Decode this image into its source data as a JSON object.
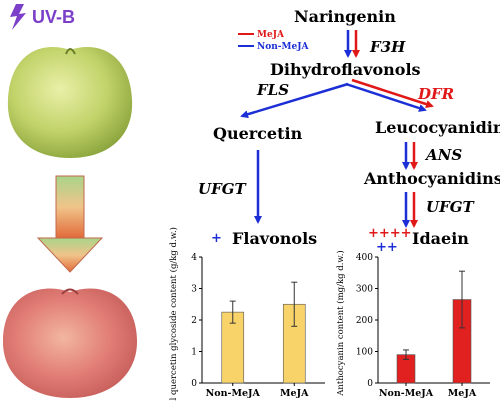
{
  "colors": {
    "uvb": "#7b3fc9",
    "mejja": "#e01818",
    "nonmejja": "#1c2fd6",
    "black": "#000000",
    "gold_bar": "#f7d36a",
    "red_bar": "#e12020"
  },
  "icons": {
    "uvb_symbol": "lightning-bolt-icon",
    "apple_top": "green-apple-image",
    "apple_bottom": "red-apple-image",
    "transition_arrow": "gradient-down-arrow-icon"
  },
  "labels": {
    "uvb": "UV-B",
    "legend_mejja": "MeJA",
    "legend_nonmejja": "Non-MeJA",
    "naringenin": "Naringenin",
    "f3h": "F3H",
    "dihydroflavonols": "Dihydroflavonols",
    "fls": "FLS",
    "dfr": "DFR",
    "quercetin": "Quercetin",
    "leucocyanidin": "Leucocyanidin",
    "ans": "ANS",
    "anthocyanidins": "Anthocyanidins",
    "ufgt_left": "UFGT",
    "ufgt_right": "UFGT",
    "flavonols_plus": "+",
    "flavonols": "Flavonols",
    "idaein_plus_red": "++++",
    "idaein_plus_blue": "++",
    "idaein": "Idaein"
  },
  "chart_data": [
    {
      "type": "bar",
      "categories": [
        "Non-MeJA",
        "MeJA"
      ],
      "values": [
        2.25,
        2.5
      ],
      "error": [
        0.35,
        0.7
      ],
      "ylabel": "Total quercetin glycoside content (g/kg d.w.)",
      "ylim": [
        0,
        4
      ],
      "yticks": [
        0,
        1,
        2,
        3,
        4
      ],
      "bar_color": "#f7d36a"
    },
    {
      "type": "bar",
      "categories": [
        "Non-MeJA",
        "MeJA"
      ],
      "values": [
        90,
        265
      ],
      "error": [
        15,
        90
      ],
      "ylabel": "Anthocyanin content (mg/kg d.w.)",
      "ylim": [
        0,
        400
      ],
      "yticks": [
        0,
        100,
        200,
        300,
        400
      ],
      "bar_color": "#e12020"
    }
  ]
}
